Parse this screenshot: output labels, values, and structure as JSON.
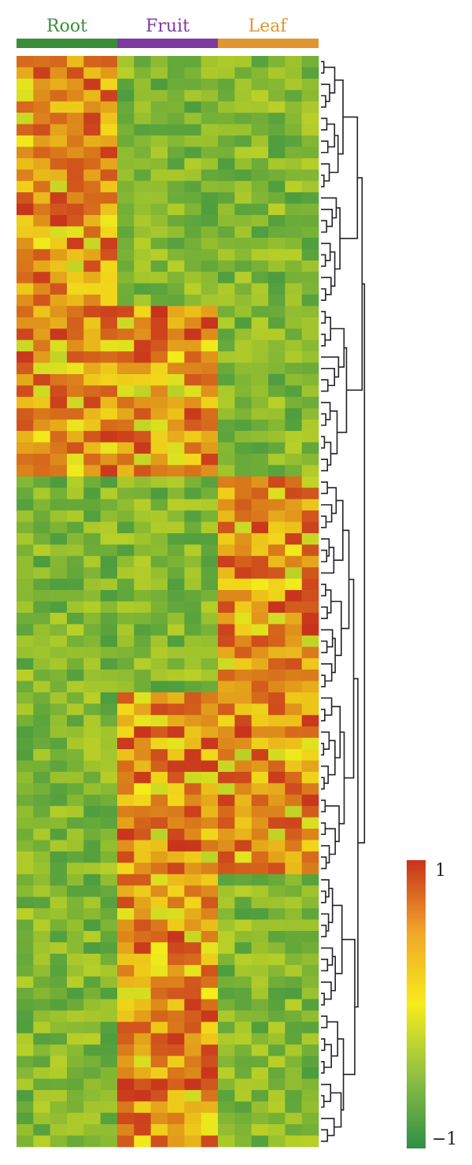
{
  "chart_data": {
    "type": "heatmap",
    "title": "",
    "xlabel": "",
    "ylabel": "",
    "groups": [
      {
        "name": "Root",
        "color": "#3a8e3a",
        "columns": 6
      },
      {
        "name": "Fruit",
        "color": "#7e3a9e",
        "columns": 6
      },
      {
        "name": "Leaf",
        "color": "#e0962e",
        "columns": 6
      }
    ],
    "rows": 96,
    "color_scale": {
      "min": -1,
      "max": 1,
      "min_label": "−1",
      "max_label": "1",
      "low_color": "#2f8f46",
      "mid_color": "#f6ec1a",
      "high_color": "#c8321c"
    },
    "clusters": [
      {
        "start": 0,
        "end": 22,
        "high_groups": [
          "Root"
        ]
      },
      {
        "start": 22,
        "end": 37,
        "high_groups": [
          "Root",
          "Fruit"
        ]
      },
      {
        "start": 37,
        "end": 56,
        "high_groups": [
          "Leaf"
        ]
      },
      {
        "start": 56,
        "end": 72,
        "high_groups": [
          "Fruit",
          "Leaf"
        ]
      },
      {
        "start": 72,
        "end": 96,
        "high_groups": [
          "Fruit"
        ]
      }
    ],
    "dendrogram": "right",
    "legend_position": "bottom-right"
  }
}
